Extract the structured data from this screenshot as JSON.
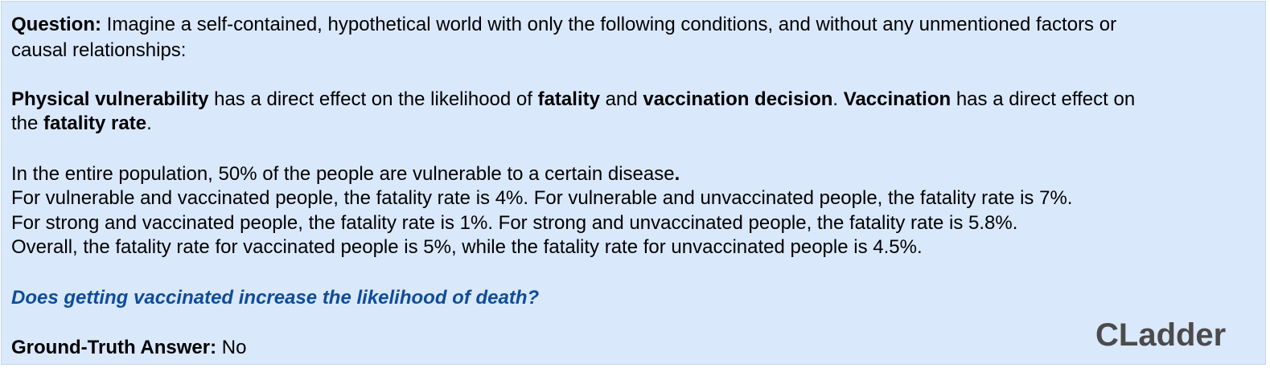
{
  "question": {
    "label": "Question:",
    "text_line1": " Imagine a self-contained, hypothetical world with only the following conditions, and without any unmentioned factors or",
    "text_line2": "causal relationships:"
  },
  "causal": {
    "t1": "Physical vulnerability",
    "t2": " has a direct effect on the likelihood of ",
    "t3": "fatality",
    "t4": " and ",
    "t5": "vaccination decision",
    "t6": ". ",
    "t7": "Vaccination",
    "t8": " has a direct effect on",
    "t9": "the ",
    "t10": "fatality rate",
    "t11": "."
  },
  "data_lines": {
    "line1_text": "In the entire population, 50% of the people are vulnerable to a certain disease",
    "line1_period": ".",
    "line2": "For vulnerable and vaccinated people, the fatality rate is 4%. For vulnerable and unvaccinated people, the fatality rate is 7%.",
    "line3": "For strong and vaccinated people, the fatality rate is 1%. For strong and unvaccinated people, the fatality rate is 5.8%.",
    "line4": "Overall, the fatality rate for vaccinated people is 5%, while the fatality rate for unvaccinated people is 4.5%."
  },
  "query": "Does getting vaccinated increase the likelihood of death?",
  "answer": {
    "label": "Ground-Truth Answer:",
    "value": " No"
  },
  "brand": "CLadder",
  "colors": {
    "panel_background": "#dae8fc",
    "query_text": "#0d4d99",
    "brand_text": "#4b4b4b"
  }
}
